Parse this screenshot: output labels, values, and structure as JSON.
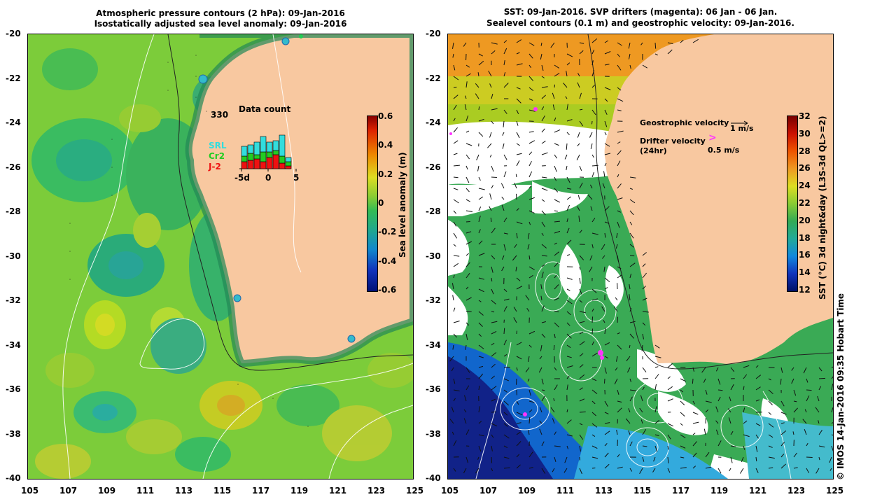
{
  "left_panel": {
    "title_line1": "Atmospheric pressure contours (2 hPa): 09-Jan-2016",
    "title_line2": "Isostatically adjusted sea level anomaly: 09-Jan-2016",
    "inset": {
      "count": "330",
      "title": "Data count",
      "legend": [
        {
          "label": "SRL",
          "color": "#33dddd"
        },
        {
          "label": "Cr2",
          "color": "#22cc22"
        },
        {
          "label": "J-2",
          "color": "#ee1111"
        }
      ],
      "xticks": [
        "-5d",
        "0",
        "5"
      ]
    },
    "colorbar": {
      "label": "Sea level anomaly (m)",
      "ticks": [
        "0.6",
        "0.4",
        "0.2",
        "0",
        "-0.2",
        "-0.4",
        "-0.6"
      ]
    }
  },
  "right_panel": {
    "title_line1": "SST: 09-Jan-2016. SVP drifters (magenta): 06 Jan - 06 Jan.",
    "title_line2": "Sealevel contours (0.1 m) and geostrophic velocity: 09-Jan-2016.",
    "legend": {
      "geostrophic_label": "Geostrophic velocity",
      "geostrophic_scale": "1 m/s",
      "drifter_label": "Drifter velocity",
      "drifter_sub": "(24hr)",
      "drifter_scale": "0.5 m/s"
    },
    "colorbar": {
      "label": "SST (°C) 3d night&day (L3S-3d QL>=2)",
      "ticks": [
        "32",
        "30",
        "28",
        "26",
        "24",
        "22",
        "20",
        "18",
        "16",
        "14",
        "12"
      ]
    }
  },
  "axes": {
    "y_ticks": [
      "-20",
      "-22",
      "-24",
      "-26",
      "-28",
      "-30",
      "-32",
      "-34",
      "-36",
      "-38",
      "-40"
    ],
    "x_ticks": [
      "105",
      "107",
      "109",
      "111",
      "113",
      "115",
      "117",
      "119",
      "121",
      "123",
      "125"
    ]
  },
  "credit": "© IMOS 14-Jan-2016 09:35 Hobart Time",
  "colors": {
    "land": "#f8c8a0",
    "sla_background": "#77cc33",
    "sst_background": "#33aa55",
    "coastline": "#222222",
    "contour": "#ffffff",
    "drifter": "#ff33ff"
  }
}
